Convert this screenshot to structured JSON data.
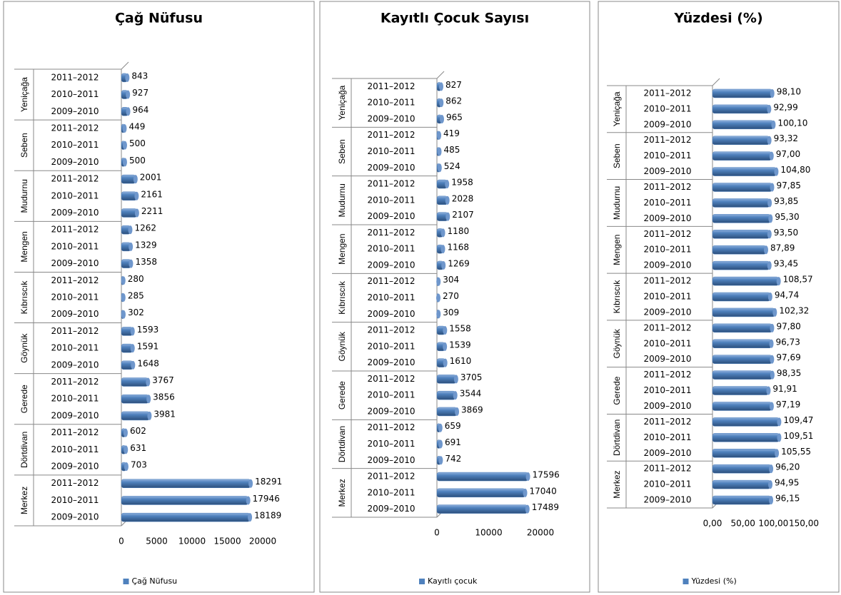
{
  "chart_data": [
    {
      "type": "bar",
      "title": "Çağ Nüfusu",
      "groups": [
        "Yeniçağa",
        "Seben",
        "Mudurnu",
        "Mengen",
        "Kıbrıscık",
        "Göynük",
        "Gerede",
        "Dörtdivan",
        "Merkez"
      ],
      "categories": [
        "2011–2012",
        "2010–2011",
        "2009–2010",
        "2011–2012",
        "2010–2011",
        "2009–2010",
        "2011–2012",
        "2010–2011",
        "2009–2010",
        "2011–2012",
        "2010–2011",
        "2009–2010",
        "2011–2012",
        "2010–2011",
        "2009–2010",
        "2011–2012",
        "2010–2011",
        "2009–2010",
        "2011–2012",
        "2010–2011",
        "2009–2010",
        "2011–2012",
        "2010–2011",
        "2009–2010",
        "2011–2012",
        "2010–2011",
        "2009–2010"
      ],
      "series": [
        {
          "name": "Çağ Nüfusu",
          "color": "#4f81bd",
          "values": [
            843,
            927,
            964,
            449,
            500,
            500,
            2001,
            2161,
            2211,
            1262,
            1329,
            1358,
            280,
            285,
            302,
            1593,
            1591,
            1648,
            3767,
            3856,
            3981,
            602,
            631,
            703,
            18291,
            17946,
            18189
          ]
        }
      ],
      "xlim": [
        0,
        20000
      ],
      "xticks": [
        0,
        5000,
        10000,
        15000,
        20000
      ],
      "legend": "bottom"
    },
    {
      "type": "bar",
      "title": "Kayıtlı Çocuk Sayısı",
      "groups": [
        "Yeniçağa",
        "Seben",
        "Mudurnu",
        "Mengen",
        "Kıbrıscık",
        "Göynük",
        "Gerede",
        "Dörtdivan",
        "Merkez"
      ],
      "categories": [
        "2011–2012",
        "2010–2011",
        "2009–2010",
        "2011–2012",
        "2010–2011",
        "2009–2010",
        "2011–2012",
        "2010–2011",
        "2009–2010",
        "2011–2012",
        "2010–2011",
        "2009–2010",
        "2011–2012",
        "2010–2011",
        "2009–2010",
        "2011–2012",
        "2010–2011",
        "2009–2010",
        "2011–2012",
        "2010–2011",
        "2009–2010",
        "2011–2012",
        "2010–2011",
        "2009–2010",
        "2011–2012",
        "2010–2011",
        "2009–2010"
      ],
      "series": [
        {
          "name": "Kayıtlı çocuk",
          "color": "#4f81bd",
          "values": [
            827,
            862,
            965,
            419,
            485,
            524,
            1958,
            2028,
            2107,
            1180,
            1168,
            1269,
            304,
            270,
            309,
            1558,
            1539,
            1610,
            3705,
            3544,
            3869,
            659,
            691,
            742,
            17596,
            17040,
            17489
          ]
        }
      ],
      "xlim": [
        0,
        20000
      ],
      "xticks": [
        0,
        10000,
        20000
      ],
      "legend": "bottom"
    },
    {
      "type": "bar",
      "title": "Yüzdesi (%)",
      "groups": [
        "Yeniçağa",
        "Seben",
        "Mudurnu",
        "Mengen",
        "Kıbrıscık",
        "Göynük",
        "Gerede",
        "Dörtdivan",
        "Merkez"
      ],
      "categories": [
        "2011–2012",
        "2010–2011",
        "2009–2010",
        "2011–2012",
        "2010–2011",
        "2009–2010",
        "2011–2012",
        "2010–2011",
        "2009–2010",
        "2011–2012",
        "2010–2011",
        "2009–2010",
        "2011–2012",
        "2010–2011",
        "2009–2010",
        "2011–2012",
        "2010–2011",
        "2009–2010",
        "2011–2012",
        "2010–2011",
        "2009–2010",
        "2011–2012",
        "2010–2011",
        "2009–2010",
        "2011–2012",
        "2010–2011",
        "2009–2010"
      ],
      "series": [
        {
          "name": "Yüzdesi (%)",
          "color": "#4f81bd",
          "values": [
            98.1,
            92.99,
            100.1,
            93.32,
            97.0,
            104.8,
            97.85,
            93.85,
            95.3,
            93.5,
            87.89,
            93.45,
            108.57,
            94.74,
            102.32,
            97.8,
            96.73,
            97.69,
            98.35,
            91.91,
            97.19,
            109.47,
            109.51,
            105.55,
            96.2,
            94.95,
            96.15
          ],
          "value_labels": [
            "98,10",
            "92,99",
            "100,10",
            "93,32",
            "97,00",
            "104,80",
            "97,85",
            "93,85",
            "95,30",
            "93,50",
            "87,89",
            "93,45",
            "108,57",
            "94,74",
            "102,32",
            "97,80",
            "96,73",
            "97,69",
            "98,35",
            "91,91",
            "97,19",
            "109,47",
            "109,51",
            "105,55",
            "96,20",
            "94,95",
            "96,15"
          ]
        }
      ],
      "xlim": [
        0,
        150
      ],
      "xticks": [
        {
          "value": 0,
          "label": "0,00"
        },
        {
          "value": 50,
          "label": "50,00"
        },
        {
          "value": 100,
          "label": "100,00"
        },
        {
          "value": 150,
          "label": "150,00"
        }
      ],
      "legend": "bottom"
    }
  ]
}
